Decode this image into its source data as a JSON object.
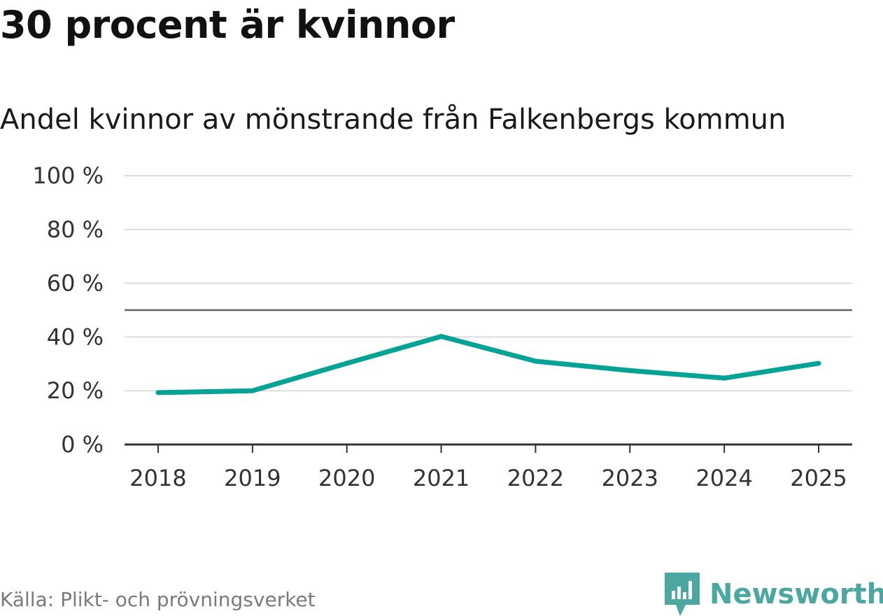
{
  "header": {
    "title": "30 procent är kvinnor",
    "subtitle": "Andel kvinnor av mönstrande från Falkenbergs kommun"
  },
  "chart_data": {
    "type": "line",
    "title": "30 procent är kvinnor",
    "subtitle": "Andel kvinnor av mönstrande från Falkenbergs kommun",
    "xlabel": "",
    "ylabel": "",
    "categories": [
      "2018",
      "2019",
      "2020",
      "2021",
      "2022",
      "2023",
      "2024",
      "2025"
    ],
    "series": [
      {
        "name": "Andel kvinnor",
        "values": [
          19.3,
          20.0,
          30.2,
          40.2,
          31.0,
          27.5,
          24.7,
          30.2
        ],
        "color": "#05a296"
      }
    ],
    "ylim": [
      0,
      100
    ],
    "yticks": [
      0,
      20,
      40,
      60,
      80,
      100
    ],
    "ytick_suffix": " %",
    "reference_line": 50,
    "grid": true
  },
  "footer": {
    "source": "Källa: Plikt- och prövningsverket",
    "brand": "Newsworthy"
  },
  "colors": {
    "line": "#05a296",
    "grid": "#dddddd",
    "axis": "#333333",
    "reference": "#666666",
    "brand": "#4ba7a0"
  },
  "icons": {
    "brand_logo": "newsworthy-logo-icon"
  }
}
